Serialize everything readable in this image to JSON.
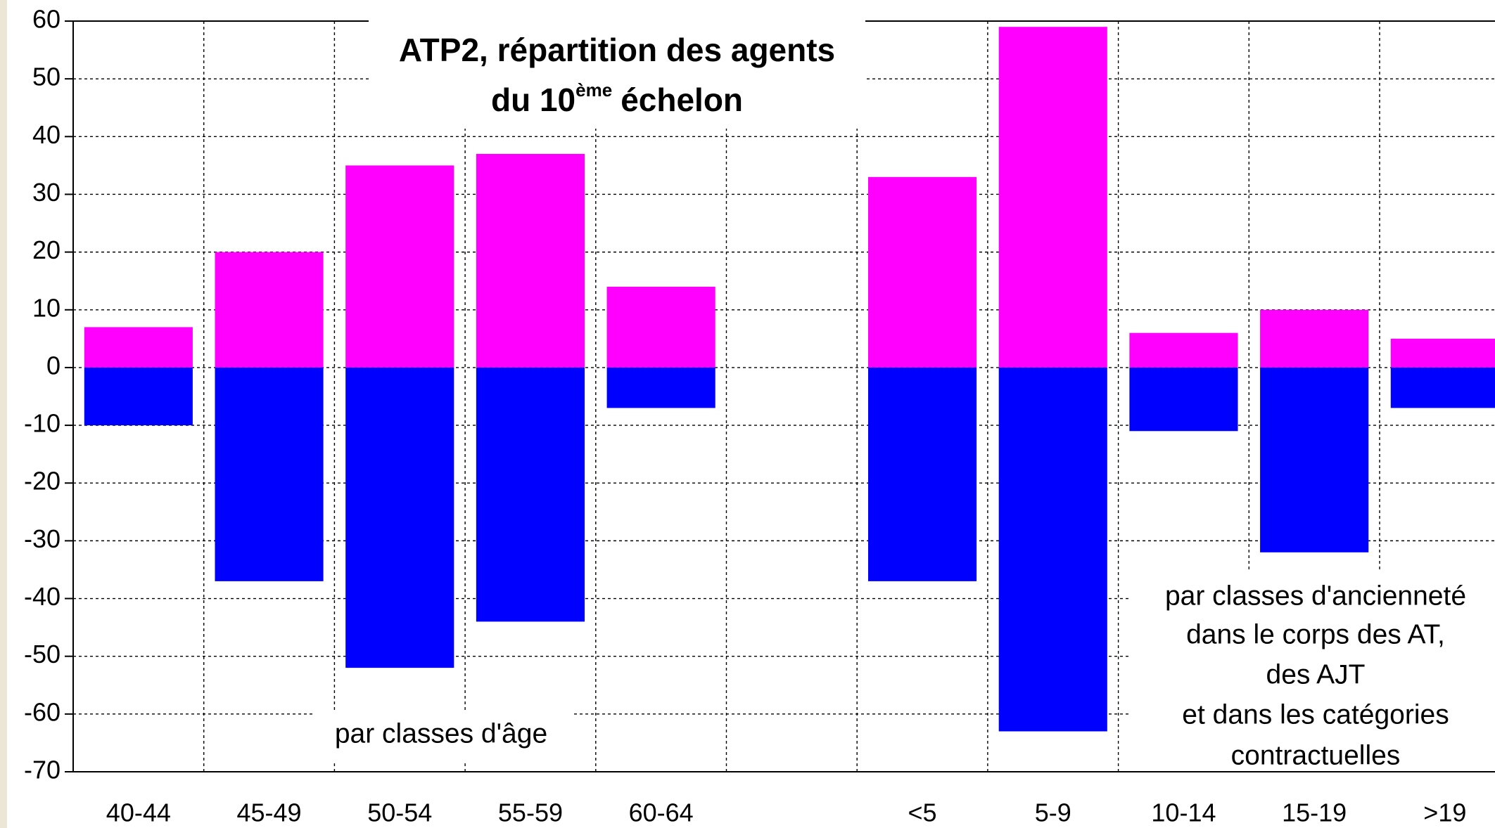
{
  "chart_data": {
    "type": "bar",
    "title": {
      "line1": "ATP2, répartition des agents",
      "line2": "du 10",
      "sup": "ème",
      "line2_end": "échelon"
    },
    "categories": [
      "40-44",
      "45-49",
      "50-54",
      "55-59",
      "60-64",
      null,
      "<5",
      "5-9",
      "10-14",
      "15-19",
      ">19"
    ],
    "series": [
      {
        "color": "#ff00ff",
        "values": [
          7,
          20,
          35,
          37,
          14,
          null,
          33,
          59,
          6,
          10,
          5
        ]
      },
      {
        "color": "#0000ff",
        "values": [
          -10,
          -37,
          -52,
          -44,
          -7,
          null,
          -37,
          -63,
          -11,
          -32,
          -7
        ]
      }
    ],
    "ylim": [
      -70,
      60
    ],
    "yticks": [
      -70,
      -60,
      -50,
      -40,
      -30,
      -20,
      -10,
      0,
      10,
      20,
      30,
      40,
      50,
      60
    ],
    "grid": true,
    "annotations": {
      "age": "par classes d'âge",
      "anciennete": [
        "par classes d'ancienneté",
        "dans le corps des AT,",
        "des AJT",
        "et dans les catégories",
        "contractuelles"
      ]
    }
  }
}
